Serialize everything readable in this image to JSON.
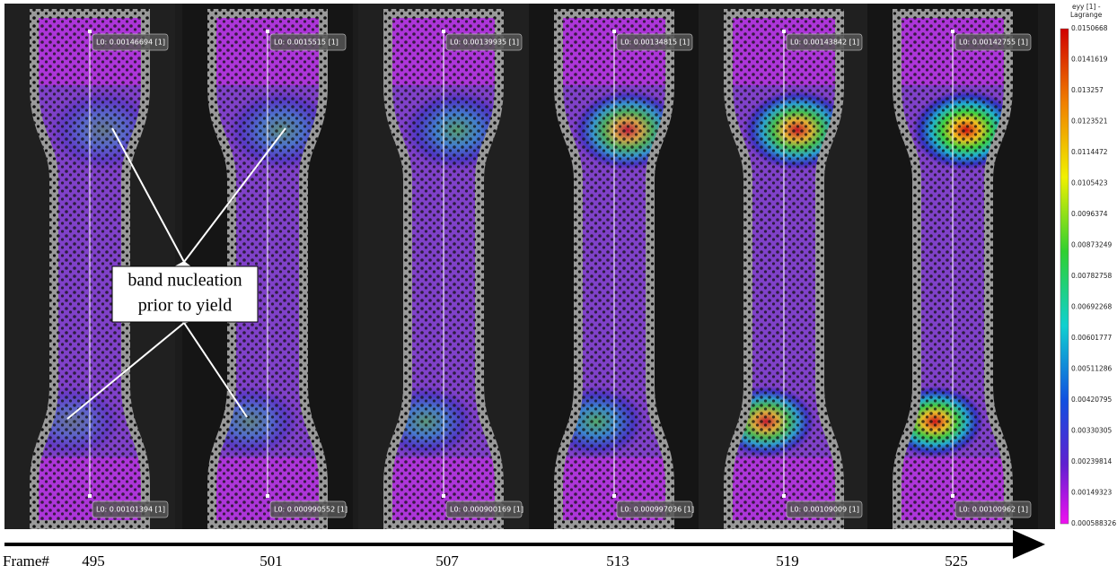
{
  "colorbar": {
    "title": [
      "eyy [1] -",
      "Lagrange"
    ],
    "ticks": [
      "0.0150668",
      "0.0141619",
      "0.013257",
      "0.0123521",
      "0.0114472",
      "0.0105423",
      "0.0096374",
      "0.00873249",
      "0.00782758",
      "0.00692268",
      "0.00601777",
      "0.00511286",
      "0.00420795",
      "0.00330305",
      "0.00239814",
      "0.00149323",
      "0.000588326"
    ]
  },
  "specimens": [
    {
      "frame": "495",
      "top_probe": "L0: 0.00146694 [1]",
      "bottom_probe": "L0: 0.00101394 [1]"
    },
    {
      "frame": "501",
      "top_probe": "L0: 0.0015515 [1]",
      "bottom_probe": "L0: 0.000990552 [1]"
    },
    {
      "frame": "507",
      "top_probe": "L0: 0.00139935 [1]",
      "bottom_probe": "L0: 0.000900169 [1]"
    },
    {
      "frame": "513",
      "top_probe": "L0: 0.00134815 [1]",
      "bottom_probe": "L0: 0.000997036 [1]"
    },
    {
      "frame": "519",
      "top_probe": "L0: 0.00143842 [1]",
      "bottom_probe": "L0: 0.00109009 [1]"
    },
    {
      "frame": "525",
      "top_probe": "L0: 0.00142755 [1]",
      "bottom_probe": "L0: 0.00100962 [1]"
    }
  ],
  "annotation": {
    "lines": [
      "band nucleation",
      "prior to yield"
    ]
  },
  "frame_axis_label": "Frame#"
}
